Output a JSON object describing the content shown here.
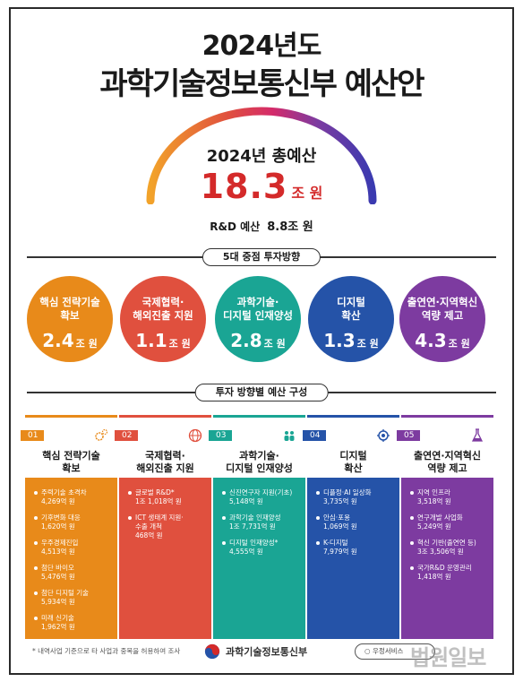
{
  "title": {
    "line1": "2024년도",
    "line2": "과학기술정보통신부 예산안"
  },
  "total": {
    "label": "2024년 총예산",
    "value": "18.3",
    "unit": "조 원"
  },
  "rnd": {
    "label": "R&D 예산",
    "value": "8.8조 원"
  },
  "sections": {
    "priorities": "5대 중점 투자방향",
    "composition": "투자 방향별 예산 구성"
  },
  "priorities": [
    {
      "label": [
        "핵심 전략기술",
        "확보"
      ],
      "value": "2.4",
      "unit": "조 원",
      "color": "#e88a1a"
    },
    {
      "label": [
        "국제협력·",
        "해외진출 지원"
      ],
      "value": "1.1",
      "unit": "조 원",
      "color": "#e0503e"
    },
    {
      "label": [
        "과학기술·",
        "디지털 인재양성"
      ],
      "value": "2.8",
      "unit": "조 원",
      "color": "#1aa594"
    },
    {
      "label": [
        "디지털",
        "확산"
      ],
      "value": "1.3",
      "unit": "조 원",
      "color": "#2553a8"
    },
    {
      "label": [
        "출연연·지역혁신",
        "역량 제고"
      ],
      "value": "4.3",
      "unit": "조 원",
      "color": "#7d3ba0"
    }
  ],
  "cards": [
    {
      "num": "01",
      "icon": "gears-icon",
      "color": "#e88a1a",
      "title": [
        "핵심 전략기술",
        "확보"
      ],
      "items": [
        [
          "주력기술 초격차",
          "4,269억 원"
        ],
        [
          "기후변화 대응",
          "1,620억 원"
        ],
        [
          "우주경제진입",
          "4,513억 원"
        ],
        [
          "첨단 바이오",
          "5,476억 원"
        ],
        [
          "첨단 디지털 기술",
          "5,934억 원"
        ],
        [
          "미래 신기술",
          "1,962억 원"
        ]
      ]
    },
    {
      "num": "02",
      "icon": "globe-icon",
      "color": "#e0503e",
      "title": [
        "국제협력·",
        "해외진출 지원"
      ],
      "items": [
        [
          "글로벌 R&D*",
          "1조 1,018억 원"
        ],
        [
          "ICT 생태계 지원·",
          "수출 개척",
          "468억 원"
        ]
      ]
    },
    {
      "num": "03",
      "icon": "people-icon",
      "color": "#1aa594",
      "title": [
        "과학기술·",
        "디지털 인재양성"
      ],
      "items": [
        [
          "신진연구자 지원(기초)",
          "5,148억 원"
        ],
        [
          "과학기술 인재양성",
          "1조 7,731억 원"
        ],
        [
          "디지털 인재양성*",
          "4,555억 원"
        ]
      ]
    },
    {
      "num": "04",
      "icon": "ai-chip-icon",
      "color": "#2553a8",
      "title": [
        "디지털",
        "확산"
      ],
      "items": [
        [
          "디플정·AI 일상화",
          "3,735억 원"
        ],
        [
          "안심·포용",
          "1,069억 원"
        ],
        [
          "K-디지털",
          "7,979억 원"
        ]
      ]
    },
    {
      "num": "05",
      "icon": "flask-icon",
      "color": "#7d3ba0",
      "title": [
        "출연연·지역혁신",
        "역량 제고"
      ],
      "items": [
        [
          "지역 인프라",
          "3,518억 원"
        ],
        [
          "연구개발 사업화",
          "5,249억 원"
        ],
        [
          "혁신 기반(출연연 등)",
          "3조 3,506억 원"
        ],
        [
          "국가R&D 운영관리",
          "1,418억 원"
        ]
      ]
    }
  ],
  "footer": {
    "note": "* 내역사업 기준으로 타 사업과 중복을 허용하여 조사",
    "ministry": "과학기술정보통신부",
    "source": "우정서비스",
    "watermark": "법원일보"
  }
}
